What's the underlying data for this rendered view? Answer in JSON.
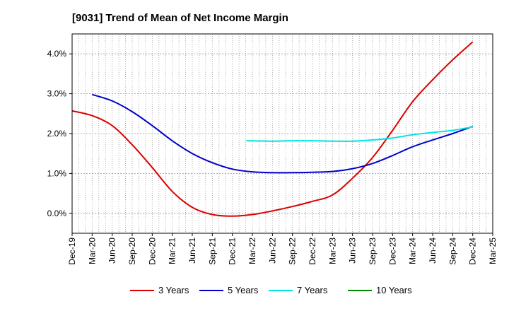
{
  "chart_data": {
    "type": "line",
    "title": "[9031]  Trend of Mean of Net Income Margin",
    "xlabel": "",
    "ylabel": "",
    "x_tick_labels": [
      "Dec-19",
      "Mar-20",
      "Jun-20",
      "Sep-20",
      "Dec-20",
      "Mar-21",
      "Jun-21",
      "Sep-21",
      "Dec-21",
      "Mar-22",
      "Jun-22",
      "Sep-22",
      "Dec-22",
      "Mar-23",
      "Jun-23",
      "Sep-23",
      "Dec-23",
      "Mar-24",
      "Jun-24",
      "Sep-24",
      "Dec-24",
      "Mar-25"
    ],
    "y_ticks": [
      0.0,
      1.0,
      2.0,
      3.0,
      4.0
    ],
    "y_tick_labels": [
      "0.0%",
      "1.0%",
      "2.0%",
      "3.0%",
      "4.0%"
    ],
    "ylim": [
      -0.5,
      4.5
    ],
    "grid": true,
    "legend_position": "bottom",
    "series": [
      {
        "name": "3 Years",
        "color": "#dd0000",
        "points": [
          [
            0,
            2.57
          ],
          [
            1,
            2.45
          ],
          [
            2,
            2.2
          ],
          [
            3,
            1.72
          ],
          [
            4,
            1.15
          ],
          [
            5,
            0.55
          ],
          [
            6,
            0.15
          ],
          [
            7,
            -0.03
          ],
          [
            8,
            -0.07
          ],
          [
            9,
            -0.03
          ],
          [
            10,
            0.06
          ],
          [
            11,
            0.17
          ],
          [
            12,
            0.3
          ],
          [
            13,
            0.46
          ],
          [
            14,
            0.88
          ],
          [
            15,
            1.4
          ],
          [
            16,
            2.08
          ],
          [
            17,
            2.8
          ],
          [
            18,
            3.35
          ],
          [
            19,
            3.85
          ],
          [
            20,
            4.3
          ]
        ]
      },
      {
        "name": "5 Years",
        "color": "#0000cc",
        "points": [
          [
            1,
            2.98
          ],
          [
            2,
            2.82
          ],
          [
            3,
            2.55
          ],
          [
            4,
            2.2
          ],
          [
            5,
            1.82
          ],
          [
            6,
            1.5
          ],
          [
            7,
            1.27
          ],
          [
            8,
            1.11
          ],
          [
            9,
            1.04
          ],
          [
            10,
            1.02
          ],
          [
            11,
            1.02
          ],
          [
            12,
            1.03
          ],
          [
            13,
            1.05
          ],
          [
            14,
            1.12
          ],
          [
            15,
            1.25
          ],
          [
            16,
            1.45
          ],
          [
            17,
            1.67
          ],
          [
            18,
            1.84
          ],
          [
            19,
            2.0
          ],
          [
            20,
            2.18
          ]
        ]
      },
      {
        "name": "7 Years",
        "color": "#00e5e5",
        "points": [
          [
            8.7,
            1.82
          ],
          [
            10,
            1.81
          ],
          [
            11,
            1.82
          ],
          [
            12,
            1.82
          ],
          [
            13,
            1.81
          ],
          [
            14,
            1.81
          ],
          [
            15,
            1.84
          ],
          [
            16,
            1.89
          ],
          [
            17,
            1.97
          ],
          [
            18,
            2.03
          ],
          [
            19,
            2.08
          ],
          [
            20,
            2.17
          ]
        ]
      },
      {
        "name": "10 Years",
        "color": "#008800",
        "points": []
      }
    ]
  }
}
